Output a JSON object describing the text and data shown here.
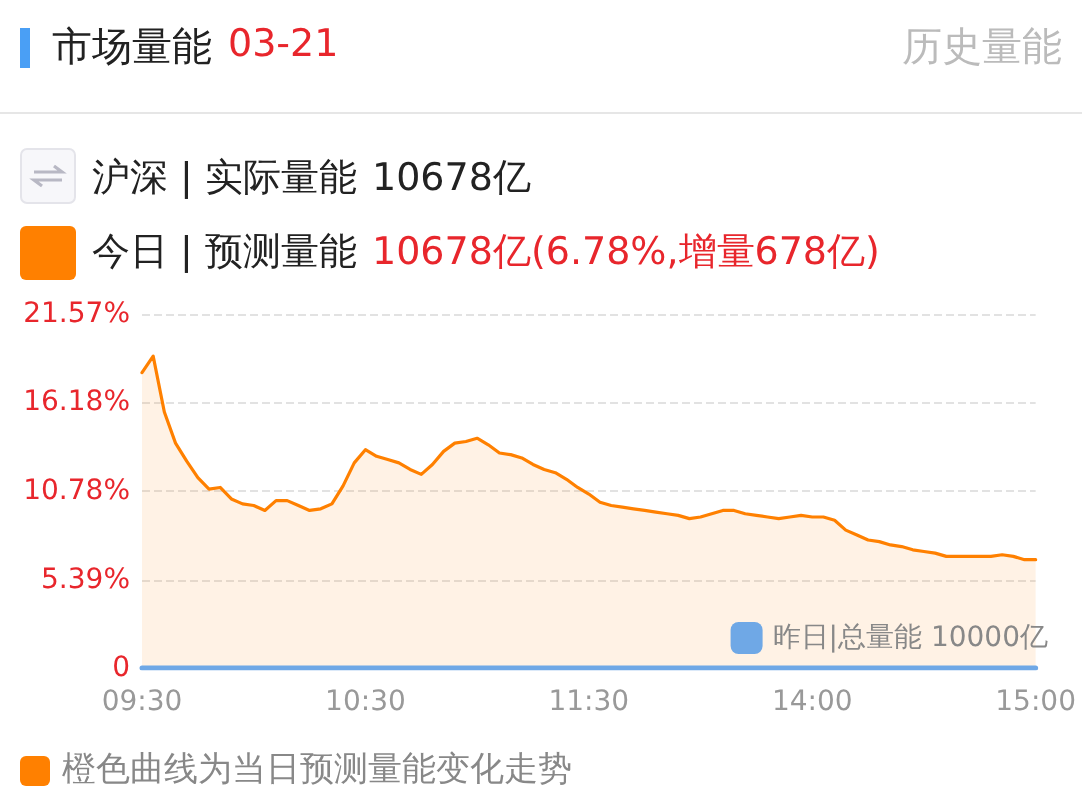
{
  "chart_data": {
    "type": "area",
    "title": "市场量能",
    "subtitle": "03-21",
    "annotations": [
      "历史量能",
      "沪深 | 实际量能",
      "10678亿",
      "今日 | 预测量能",
      "10678亿(6.78%,增量678亿)",
      "橙色曲线为当日预测量能变化走势"
    ],
    "categories": [
      "09:30",
      null,
      null,
      null,
      null,
      null,
      null,
      null,
      null,
      null,
      null,
      null,
      null,
      null,
      null,
      null,
      null,
      null,
      null,
      null,
      "10:30",
      null,
      null,
      null,
      null,
      null,
      null,
      null,
      null,
      null,
      null,
      null,
      null,
      null,
      null,
      null,
      null,
      null,
      null,
      null,
      "11:30",
      null,
      null,
      null,
      null,
      null,
      null,
      null,
      null,
      null,
      null,
      null,
      null,
      null,
      null,
      null,
      null,
      null,
      null,
      null,
      "14:00",
      null,
      null,
      null,
      null,
      null,
      null,
      null,
      null,
      null,
      null,
      null,
      null,
      null,
      null,
      null,
      null,
      null,
      null,
      null,
      "15:00"
    ],
    "series": [
      {
        "color": "#ff8000",
        "values": [
          18.0,
          19.0,
          15.6,
          13.7,
          12.6,
          11.6,
          10.9,
          11.0,
          10.3,
          10.0,
          9.9,
          9.6,
          10.2,
          10.2,
          9.9,
          9.6,
          9.7,
          10.0,
          11.1,
          12.5,
          13.3,
          12.9,
          12.7,
          12.5,
          12.1,
          11.8,
          12.4,
          13.2,
          13.7,
          13.8,
          14.0,
          13.6,
          13.1,
          13.0,
          12.8,
          12.4,
          12.1,
          11.9,
          11.5,
          11.0,
          10.6,
          10.1,
          9.9,
          9.8,
          9.7,
          9.6,
          9.5,
          9.4,
          9.3,
          9.1,
          9.2,
          9.4,
          9.6,
          9.6,
          9.4,
          9.3,
          9.2,
          9.1,
          9.2,
          9.3,
          9.2,
          9.2,
          9.0,
          8.4,
          8.1,
          7.8,
          7.7,
          7.5,
          7.4,
          7.2,
          7.1,
          7.0,
          6.8,
          6.8,
          6.8,
          6.8,
          6.8,
          6.9,
          6.8,
          6.6,
          6.6
        ]
      },
      {
        "type": "line",
        "name": "昨日|总量能 10000亿",
        "color": "#6fa8e6",
        "values": [
          0,
          0,
          0,
          0,
          0,
          0,
          0,
          0,
          0,
          0,
          0,
          0,
          0,
          0,
          0,
          0,
          0,
          0,
          0,
          0,
          0,
          0,
          0,
          0,
          0,
          0,
          0,
          0,
          0,
          0,
          0,
          0,
          0,
          0,
          0,
          0,
          0,
          0,
          0,
          0,
          0,
          0,
          0,
          0,
          0,
          0,
          0,
          0,
          0,
          0,
          0,
          0,
          0,
          0,
          0,
          0,
          0,
          0,
          0,
          0,
          0,
          0,
          0,
          0,
          0,
          0,
          0,
          0,
          0,
          0,
          0,
          0,
          0,
          0,
          0,
          0,
          0,
          0,
          0,
          0,
          0
        ]
      }
    ],
    "ylim": [
      0,
      21.57
    ],
    "yticks": [
      {
        "value": 0,
        "label": "0"
      },
      {
        "value": 5.39,
        "label": "5.39%"
      },
      {
        "value": 10.78,
        "label": "10.78%"
      },
      {
        "value": 16.18,
        "label": "16.18%"
      },
      {
        "value": 21.57,
        "label": "21.57%"
      }
    ],
    "grid": "y",
    "legend": "bottom right",
    "marker": "none",
    "line_style": "solid"
  }
}
